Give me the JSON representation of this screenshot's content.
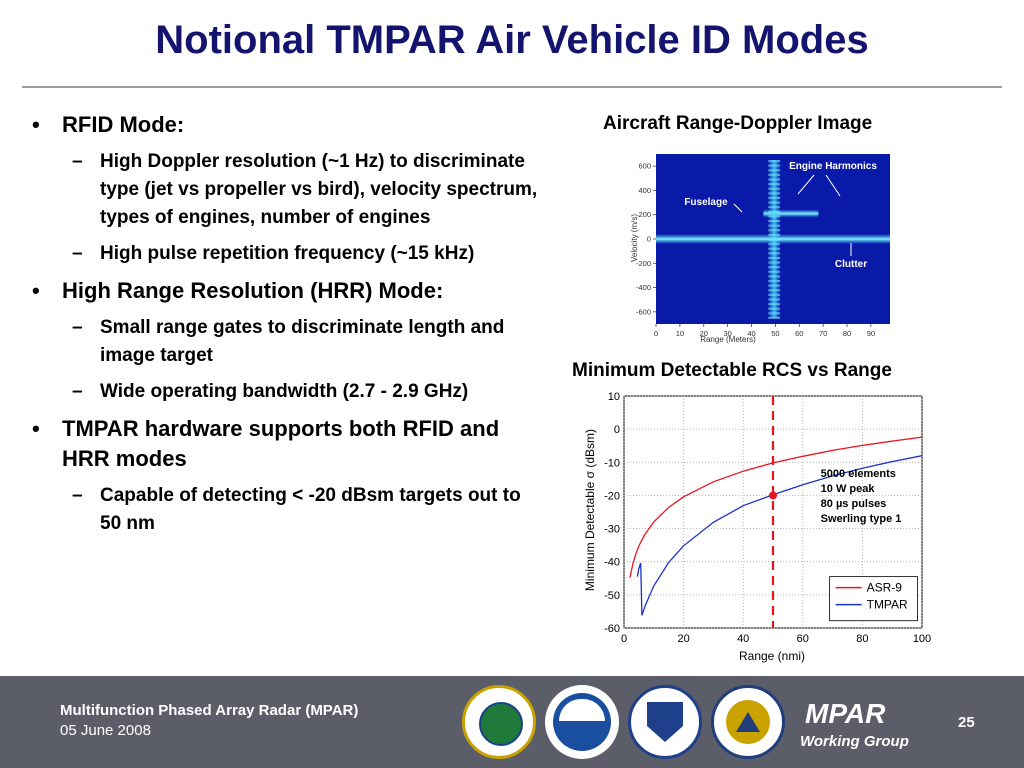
{
  "slide": {
    "title": "Notional TMPAR Air Vehicle ID Modes",
    "bullets": [
      {
        "level": 1,
        "text": "RFID Mode:"
      },
      {
        "level": 2,
        "text": "High Doppler resolution (~1 Hz) to discriminate type (jet vs propeller vs bird), velocity spectrum, types of engines, number of engines"
      },
      {
        "level": 2,
        "text": "High pulse repetition frequency (~15 kHz)"
      },
      {
        "level": 1,
        "text": "High Range Resolution (HRR) Mode:"
      },
      {
        "level": 2,
        "text": "Small range gates to discriminate length and image target"
      },
      {
        "level": 2,
        "text": "Wide operating bandwidth (2.7 - 2.9 GHz)"
      },
      {
        "level": 1,
        "text": "TMPAR hardware supports both RFID and HRR modes"
      },
      {
        "level": 2,
        "text": "Capable of detecting < -20 dBsm targets out to 50 nm"
      }
    ],
    "bullet_markers": {
      "level1": "•",
      "level2": "–"
    }
  },
  "chart_data": [
    {
      "type": "heatmap",
      "title": "Aircraft Range-Doppler Image",
      "xlabel": "Range (Meters)",
      "ylabel": "Velocity (m/s)",
      "xlim": [
        0,
        98
      ],
      "ylim": [
        -700,
        700
      ],
      "xticks": [
        0,
        10,
        20,
        30,
        40,
        50,
        60,
        70,
        80,
        90
      ],
      "yticks": [
        600,
        400,
        200,
        0,
        -200,
        -400,
        -600
      ],
      "features": [
        {
          "name": "Clutter",
          "range": [
            0,
            98
          ],
          "velocity": 0
        },
        {
          "name": "Fuselage",
          "range": [
            45,
            68
          ],
          "velocity": 210
        },
        {
          "name": "Engine Harmonics",
          "range": [
            47,
            52
          ],
          "velocity": [
            -650,
            650
          ]
        }
      ],
      "annotations": [
        "Engine Harmonics",
        "Fuselage",
        "Clutter"
      ],
      "colors": {
        "background": "#0a1aa8",
        "feature": "#46d8ff",
        "label": "#ffffff"
      }
    },
    {
      "type": "line",
      "title": "Minimum Detectable RCS vs Range",
      "xlabel": "Range (nmi)",
      "ylabel": "Minimum Detectable σ (dBsm)",
      "xlim": [
        0,
        100
      ],
      "ylim": [
        -60,
        10
      ],
      "xticks": [
        0,
        20,
        40,
        60,
        80,
        100
      ],
      "yticks": [
        10,
        0,
        -10,
        -20,
        -30,
        -40,
        -50,
        -60
      ],
      "grid": true,
      "legend": "bottom-right",
      "series": [
        {
          "name": "ASR-9",
          "color": "#e8141e",
          "x": [
            2,
            3,
            4,
            5,
            6,
            7,
            10,
            15,
            20,
            30,
            40,
            50,
            60,
            70,
            80,
            90,
            100
          ],
          "y": [
            -44.8,
            -40.6,
            -37.6,
            -35.3,
            -33.4,
            -31.8,
            -28.0,
            -23.6,
            -20.4,
            -15.9,
            -12.7,
            -10.2,
            -8.2,
            -6.4,
            -4.9,
            -3.6,
            -2.4
          ]
        },
        {
          "name": "TMPAR",
          "color": "#1e32c8",
          "x": [
            4.5,
            5,
            5.6,
            6,
            7,
            10,
            15,
            20,
            30,
            40,
            50,
            60,
            70,
            80,
            90,
            100
          ],
          "y": [
            -44.5,
            -42.0,
            -40.4,
            -56.2,
            -53.5,
            -47.3,
            -40.2,
            -35.2,
            -28.1,
            -23.1,
            -19.8,
            -16.8,
            -14.1,
            -11.8,
            -9.8,
            -8.0
          ]
        }
      ],
      "reference_line": {
        "x": 50,
        "color": "#e8141e",
        "style": "dashed"
      },
      "marker": {
        "x": 50,
        "y": -20,
        "color": "#e8141e"
      },
      "annotation": [
        "5000 elements",
        "10 W peak",
        "80 µs pulses",
        "Swerling type 1"
      ]
    }
  ],
  "footer": {
    "program": "Multifunction Phased Array Radar (MPAR)",
    "date": "05 June 2008",
    "brand": "MPAR",
    "brand_sub": "Working Group",
    "page": "25",
    "seals": [
      {
        "name": "faa-seal",
        "color": "#1f7a3a"
      },
      {
        "name": "noaa-seal",
        "color": "#1a4fa0"
      },
      {
        "name": "dhs-seal",
        "color": "#1e3f8a"
      },
      {
        "name": "dod-seal",
        "color": "#1f3e7a"
      }
    ]
  }
}
